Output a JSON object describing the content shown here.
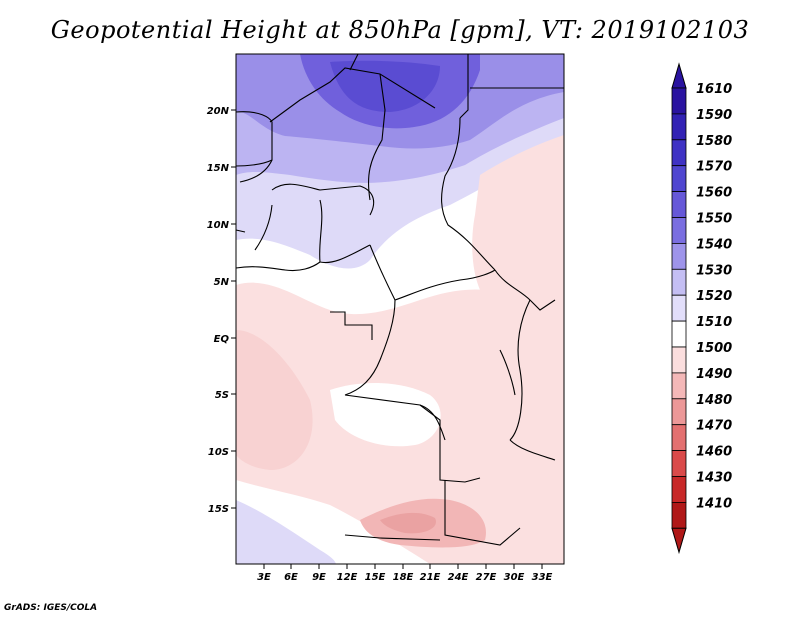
{
  "title": "Geopotential Height at 850hPa [gpm], VT: 2019102103",
  "credit": "GrADS: IGES/COLA",
  "map": {
    "lat_labels": [
      "20N",
      "15N",
      "10N",
      "5N",
      "EQ",
      "5S",
      "10S",
      "15S"
    ],
    "lon_labels": [
      "3E",
      "6E",
      "9E",
      "12E",
      "15E",
      "18E",
      "21E",
      "24E",
      "27E",
      "30E",
      "33E"
    ]
  },
  "colorbar": {
    "labels": [
      "1610",
      "1590",
      "1580",
      "1570",
      "1560",
      "1550",
      "1540",
      "1530",
      "1520",
      "1510",
      "1500",
      "1490",
      "1480",
      "1470",
      "1460",
      "1430",
      "1410"
    ],
    "colors": [
      "#2a13a0",
      "#3222b4",
      "#3f32c4",
      "#5046d0",
      "#6658d8",
      "#7a6ee0",
      "#9e94ea",
      "#c4bef3",
      "#e2defa",
      "#ffffff",
      "#fbdede",
      "#f4b8b8",
      "#ec9898",
      "#e37070",
      "#da4a4a",
      "#c82828",
      "#b01818"
    ]
  }
}
